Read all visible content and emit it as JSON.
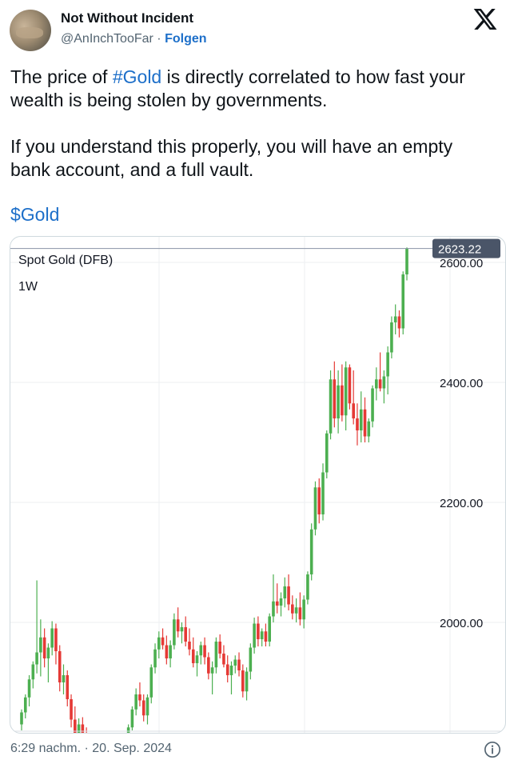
{
  "author": {
    "display_name": "Not Without Incident",
    "handle": "@AnInchTooFar",
    "separator": " · ",
    "follow_label": "Folgen",
    "avatar_icon": "avatar-photo"
  },
  "tweet": {
    "para1_pre": "The price of ",
    "para1_hashtag": "#Gold",
    "para1_post": " is directly correlated to how fast your wealth is being stolen by governments.",
    "para2": "If you understand this properly, you will have an empty bank account, and a full vault.",
    "cashtag": "$Gold"
  },
  "chart_data": {
    "type": "candlestick",
    "title": "Spot Gold (DFB)",
    "interval": "1W",
    "y_ticks": [
      2000,
      2200,
      2400,
      2600
    ],
    "y_tick_labels": [
      "2000.00",
      "2200.00",
      "2400.00",
      "2600.00"
    ],
    "last_price": 2623.22,
    "last_price_label": "2623.22",
    "up_color": "#4caf50",
    "down_color": "#e53935",
    "price_label_bg": "#4a5568",
    "grid": true,
    "ohlc": [
      [
        1830,
        1855,
        1820,
        1850
      ],
      [
        1850,
        1880,
        1840,
        1875
      ],
      [
        1875,
        1912,
        1860,
        1905
      ],
      [
        1905,
        1935,
        1890,
        1930
      ],
      [
        1930,
        2070,
        1915,
        1950
      ],
      [
        1950,
        2005,
        1910,
        1975
      ],
      [
        1975,
        1990,
        1925,
        1940
      ],
      [
        1940,
        1965,
        1900,
        1958
      ],
      [
        1958,
        2002,
        1945,
        1990
      ],
      [
        1990,
        1998,
        1930,
        1952
      ],
      [
        1952,
        1962,
        1885,
        1900
      ],
      [
        1900,
        1930,
        1880,
        1912
      ],
      [
        1912,
        1920,
        1860,
        1872
      ],
      [
        1872,
        1880,
        1825,
        1838
      ],
      [
        1838,
        1860,
        1800,
        1815
      ],
      [
        1815,
        1840,
        1790,
        1830
      ],
      [
        1830,
        1842,
        1800,
        1812
      ],
      [
        1812,
        1825,
        1790,
        1802
      ],
      [
        1802,
        1815,
        1785,
        1805
      ],
      [
        1805,
        1812,
        1790,
        1796
      ],
      [
        1796,
        1805,
        1780,
        1800
      ],
      [
        1800,
        1808,
        1785,
        1795
      ],
      [
        1795,
        1806,
        1785,
        1799
      ],
      [
        1799,
        1810,
        1788,
        1792
      ],
      [
        1792,
        1800,
        1780,
        1795
      ],
      [
        1795,
        1802,
        1782,
        1790
      ],
      [
        1790,
        1808,
        1782,
        1803
      ],
      [
        1803,
        1815,
        1790,
        1808
      ],
      [
        1808,
        1830,
        1800,
        1825
      ],
      [
        1825,
        1860,
        1820,
        1855
      ],
      [
        1855,
        1890,
        1845,
        1880
      ],
      [
        1880,
        1900,
        1860,
        1870
      ],
      [
        1870,
        1880,
        1835,
        1845
      ],
      [
        1845,
        1880,
        1830,
        1875
      ],
      [
        1875,
        1930,
        1865,
        1925
      ],
      [
        1925,
        1965,
        1915,
        1955
      ],
      [
        1955,
        1985,
        1940,
        1975
      ],
      [
        1975,
        1990,
        1955,
        1962
      ],
      [
        1962,
        1978,
        1930,
        1940
      ],
      [
        1940,
        1970,
        1925,
        1962
      ],
      [
        1962,
        2015,
        1955,
        2005
      ],
      [
        2005,
        2025,
        1975,
        1985
      ],
      [
        1985,
        2000,
        1965,
        1992
      ],
      [
        1992,
        2010,
        1960,
        1968
      ],
      [
        1968,
        1990,
        1945,
        1955
      ],
      [
        1955,
        1975,
        1925,
        1932
      ],
      [
        1932,
        1952,
        1910,
        1945
      ],
      [
        1945,
        1968,
        1930,
        1962
      ],
      [
        1962,
        1975,
        1930,
        1942
      ],
      [
        1942,
        1950,
        1905,
        1915
      ],
      [
        1915,
        1935,
        1880,
        1925
      ],
      [
        1925,
        1975,
        1915,
        1968
      ],
      [
        1968,
        1980,
        1940,
        1948
      ],
      [
        1948,
        1962,
        1925,
        1930
      ],
      [
        1930,
        1945,
        1900,
        1912
      ],
      [
        1912,
        1935,
        1880,
        1928
      ],
      [
        1928,
        1945,
        1915,
        1938
      ],
      [
        1938,
        1950,
        1910,
        1920
      ],
      [
        1920,
        1930,
        1875,
        1885
      ],
      [
        1885,
        1925,
        1870,
        1918
      ],
      [
        1918,
        1965,
        1905,
        1958
      ],
      [
        1958,
        2008,
        1948,
        1998
      ],
      [
        1998,
        2010,
        1960,
        1972
      ],
      [
        1972,
        1990,
        1960,
        1985
      ],
      [
        1985,
        1998,
        1960,
        1968
      ],
      [
        1968,
        2015,
        1960,
        2010
      ],
      [
        2010,
        2080,
        2000,
        2035
      ],
      [
        2035,
        2065,
        2015,
        2028
      ],
      [
        2028,
        2050,
        2010,
        2040
      ],
      [
        2040,
        2075,
        2025,
        2060
      ],
      [
        2060,
        2080,
        2020,
        2030
      ],
      [
        2030,
        2045,
        2005,
        2015
      ],
      [
        2015,
        2040,
        2000,
        2025
      ],
      [
        2025,
        2050,
        1995,
        2005
      ],
      [
        2005,
        2045,
        1990,
        2038
      ],
      [
        2038,
        2085,
        2030,
        2080
      ],
      [
        2080,
        2165,
        2070,
        2155
      ],
      [
        2155,
        2235,
        2145,
        2225
      ],
      [
        2225,
        2240,
        2165,
        2180
      ],
      [
        2180,
        2265,
        2170,
        2250
      ],
      [
        2250,
        2320,
        2240,
        2315
      ],
      [
        2315,
        2420,
        2305,
        2405
      ],
      [
        2405,
        2435,
        2325,
        2340
      ],
      [
        2340,
        2420,
        2315,
        2395
      ],
      [
        2395,
        2430,
        2335,
        2345
      ],
      [
        2345,
        2435,
        2320,
        2425
      ],
      [
        2425,
        2430,
        2355,
        2365
      ],
      [
        2365,
        2420,
        2330,
        2340
      ],
      [
        2340,
        2365,
        2295,
        2320
      ],
      [
        2320,
        2385,
        2300,
        2355
      ],
      [
        2355,
        2375,
        2300,
        2310
      ],
      [
        2310,
        2340,
        2300,
        2335
      ],
      [
        2335,
        2395,
        2325,
        2390
      ],
      [
        2390,
        2425,
        2370,
        2405
      ],
      [
        2405,
        2450,
        2385,
        2390
      ],
      [
        2390,
        2420,
        2365,
        2410
      ],
      [
        2410,
        2460,
        2380,
        2450
      ],
      [
        2450,
        2510,
        2440,
        2500
      ],
      [
        2500,
        2530,
        2480,
        2510
      ],
      [
        2510,
        2520,
        2475,
        2490
      ],
      [
        2490,
        2585,
        2480,
        2580
      ],
      [
        2580,
        2625,
        2570,
        2623
      ]
    ]
  },
  "footer": {
    "timestamp": "6:29 nachm. · 20. Sep. 2024",
    "info_icon": "info-circle-icon"
  }
}
